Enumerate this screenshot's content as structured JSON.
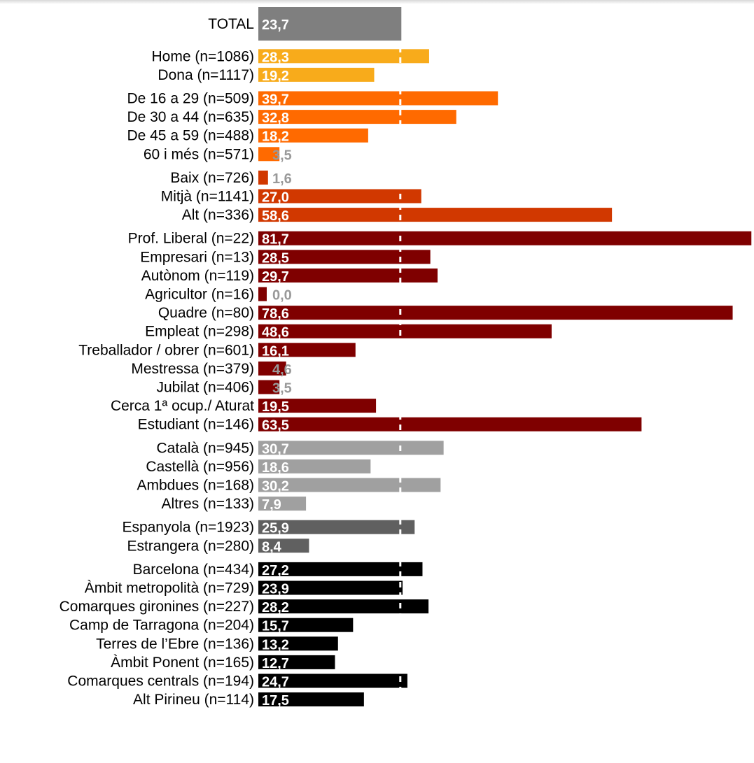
{
  "chart_data": {
    "type": "bar",
    "orientation": "horizontal",
    "xlim": [
      0,
      82
    ],
    "reference_line": 23.7,
    "value_format": "decimal-comma-1",
    "colors": {
      "total": "#7f7f7f",
      "gender": "#f8ab1b",
      "age": "#ff6a00",
      "level": "#d13800",
      "occupation": "#7f0000",
      "language": "#a0a0a0",
      "nationality": "#606060",
      "territory": "#000000",
      "value_light": "#ffffff",
      "value_grey": "#999999",
      "label": "#000000"
    },
    "groups": [
      {
        "key": "total",
        "bars": [
          {
            "label": "TOTAL",
            "value": 23.7
          }
        ]
      },
      {
        "key": "gender",
        "bars": [
          {
            "label": "Home (n=1086)",
            "value": 28.3
          },
          {
            "label": "Dona (n=1117)",
            "value": 19.2
          }
        ]
      },
      {
        "key": "age",
        "bars": [
          {
            "label": "De 16 a 29 (n=509)",
            "value": 39.7
          },
          {
            "label": "De 30 a 44 (n=635)",
            "value": 32.8
          },
          {
            "label": "De 45 a 59 (n=488)",
            "value": 18.2
          },
          {
            "label": "60 i més (n=571)",
            "value": 3.5
          }
        ]
      },
      {
        "key": "level",
        "bars": [
          {
            "label": "Baix (n=726)",
            "value": 1.6
          },
          {
            "label": "Mitjà (n=1141)",
            "value": 27.0
          },
          {
            "label": "Alt (n=336)",
            "value": 58.6
          }
        ]
      },
      {
        "key": "occupation",
        "bars": [
          {
            "label": "Prof. Liberal (n=22)",
            "value": 81.7
          },
          {
            "label": "Empresari (n=13)",
            "value": 28.5
          },
          {
            "label": "Autònom (n=119)",
            "value": 29.7
          },
          {
            "label": "Agricultor (n=16)",
            "value": 0.0
          },
          {
            "label": "Quadre (n=80)",
            "value": 78.6
          },
          {
            "label": "Empleat (n=298)",
            "value": 48.6
          },
          {
            "label": "Treballador / obrer (n=601)",
            "value": 16.1
          },
          {
            "label": "Mestressa (n=379)",
            "value": 4.6
          },
          {
            "label": "Jubilat (n=406)",
            "value": 3.5
          },
          {
            "label": "Cerca 1ª ocup./ Aturat",
            "value": 19.5
          },
          {
            "label": "Estudiant (n=146)",
            "value": 63.5
          }
        ]
      },
      {
        "key": "language",
        "bars": [
          {
            "label": "Català (n=945)",
            "value": 30.7
          },
          {
            "label": "Castellà (n=956)",
            "value": 18.6
          },
          {
            "label": "Ambdues (n=168)",
            "value": 30.2
          },
          {
            "label": "Altres (n=133)",
            "value": 7.9
          }
        ]
      },
      {
        "key": "nationality",
        "bars": [
          {
            "label": "Espanyola (n=1923)",
            "value": 25.9
          },
          {
            "label": "Estrangera (n=280)",
            "value": 8.4
          }
        ]
      },
      {
        "key": "territory",
        "bars": [
          {
            "label": "Barcelona (n=434)",
            "value": 27.2
          },
          {
            "label": "Àmbit metropolità (n=729)",
            "value": 23.9
          },
          {
            "label": "Comarques gironines (n=227)",
            "value": 28.2
          },
          {
            "label": "Camp de Tarragona (n=204)",
            "value": 15.7
          },
          {
            "label": "Terres de l’Ebre (n=136)",
            "value": 13.2
          },
          {
            "label": "Àmbit Ponent (n=165)",
            "value": 12.7
          },
          {
            "label": "Comarques centrals (n=194)",
            "value": 24.7
          },
          {
            "label": "Alt Pirineu (n=114)",
            "value": 17.5
          }
        ]
      }
    ]
  }
}
